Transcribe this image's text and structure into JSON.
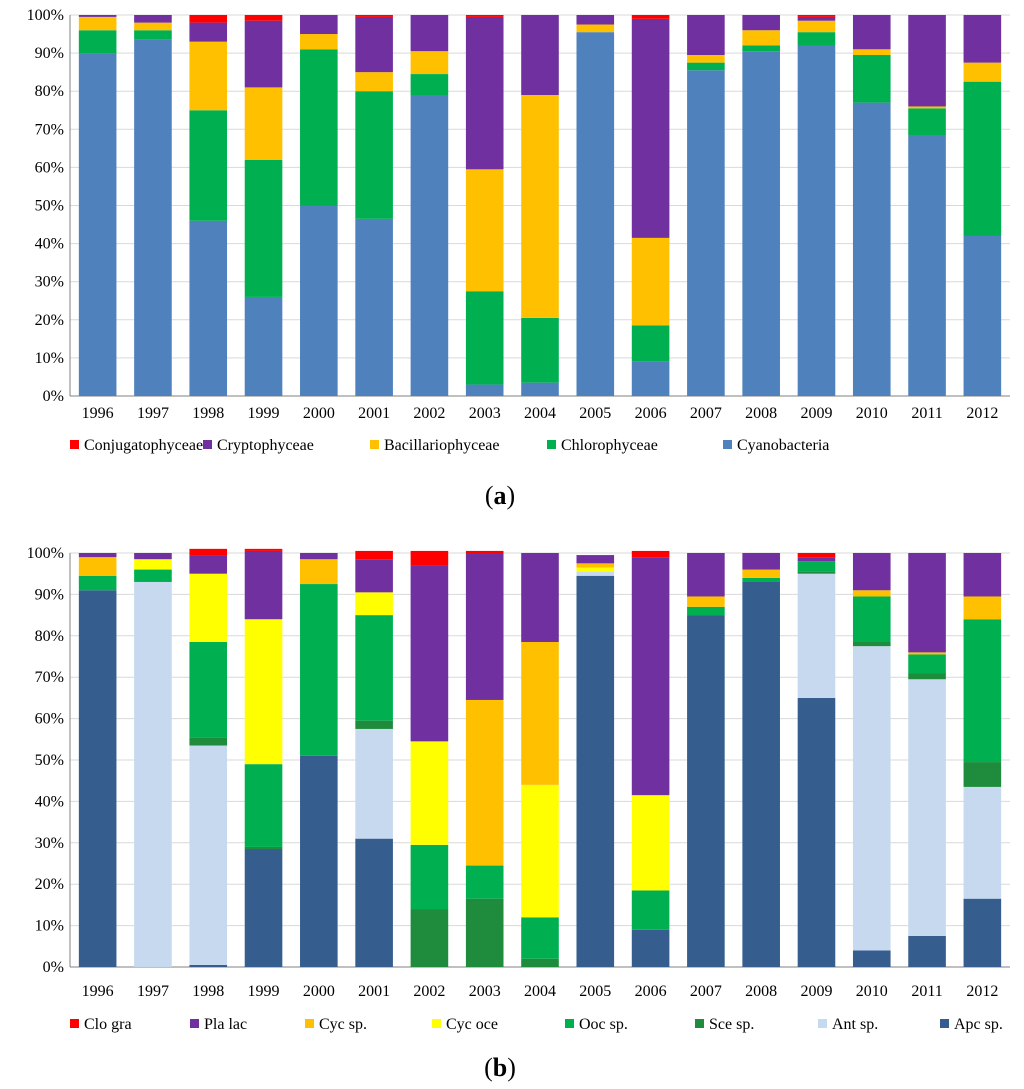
{
  "chart_data": [
    {
      "type": "bar",
      "stacked": true,
      "panel_label": "a",
      "categories": [
        "1996",
        "1997",
        "1998",
        "1999",
        "2000",
        "2001",
        "2002",
        "2003",
        "2004",
        "2005",
        "2006",
        "2007",
        "2008",
        "2009",
        "2010",
        "2011",
        "2012"
      ],
      "y_ticks": [
        "0%",
        "10%",
        "20%",
        "30%",
        "40%",
        "50%",
        "60%",
        "70%",
        "80%",
        "90%",
        "100%"
      ],
      "ylim": [
        0,
        100
      ],
      "legend_position": "bottom",
      "series": [
        {
          "name": "Cyanobacteria",
          "color": "#4F81BD",
          "values": [
            90,
            93.5,
            46,
            26,
            50,
            46.5,
            79,
            3,
            3.5,
            95.5,
            9,
            85.5,
            90.5,
            92,
            77,
            68.5,
            42
          ]
        },
        {
          "name": "Chlorophyceae",
          "color": "#00B050",
          "values": [
            6,
            2.5,
            29,
            36,
            41,
            33.5,
            5.5,
            24.5,
            17,
            0,
            9.5,
            2,
            1.5,
            3.5,
            12.5,
            7,
            40.5
          ]
        },
        {
          "name": "Bacillariophyceae",
          "color": "#FFC000",
          "values": [
            3.5,
            2,
            18,
            19,
            4,
            5,
            6,
            32,
            58.5,
            2,
            23,
            2,
            4,
            3,
            1.5,
            0.5,
            5
          ]
        },
        {
          "name": "Cryptophyceae",
          "color": "#7030A0",
          "values": [
            0.5,
            2,
            5,
            17.5,
            5,
            14.5,
            9.5,
            40,
            21,
            2.5,
            57.5,
            10.5,
            4,
            1,
            9,
            24,
            12.5
          ]
        },
        {
          "name": "Conjugatophyceae",
          "color": "#FF0000",
          "values": [
            0,
            0,
            2,
            1.5,
            0,
            0.5,
            0,
            0.5,
            0,
            0,
            1,
            0,
            0,
            0.5,
            0,
            0,
            0
          ]
        }
      ],
      "legend_order": [
        "Conjugatophyceae",
        "Cryptophyceae",
        "Bacillariophyceae",
        "Chlorophyceae",
        "Cyanobacteria"
      ]
    },
    {
      "type": "bar",
      "stacked": true,
      "panel_label": "b",
      "categories": [
        "1996",
        "1997",
        "1998",
        "1999",
        "2000",
        "2001",
        "2002",
        "2003",
        "2004",
        "2005",
        "2006",
        "2007",
        "2008",
        "2009",
        "2010",
        "2011",
        "2012"
      ],
      "y_ticks": [
        "0%",
        "10%",
        "20%",
        "30%",
        "40%",
        "50%",
        "60%",
        "70%",
        "80%",
        "90%",
        "100%"
      ],
      "ylim": [
        0,
        100
      ],
      "legend_position": "bottom",
      "series": [
        {
          "name": "Apc sp.",
          "color": "#355E8F",
          "values": [
            91,
            0,
            0.5,
            28.5,
            51,
            31,
            0,
            0,
            0,
            94.5,
            9,
            85,
            93,
            65,
            4,
            7.5,
            16.5
          ]
        },
        {
          "name": "Ant sp.",
          "color": "#C6D9EF",
          "values": [
            0,
            93,
            53,
            0,
            0,
            26.5,
            0,
            0,
            0,
            1,
            0,
            0,
            0,
            30,
            73.5,
            62,
            27
          ]
        },
        {
          "name": "Sce sp.",
          "color": "#1E8C3C",
          "values": [
            0,
            0,
            2,
            0.5,
            0,
            2,
            14,
            16.5,
            2,
            0,
            0,
            0,
            0,
            0.5,
            1,
            1.5,
            6
          ]
        },
        {
          "name": "Ooc sp.",
          "color": "#00B050",
          "values": [
            3.5,
            3,
            23,
            20,
            41.5,
            25.5,
            15.5,
            8,
            10,
            0,
            9.5,
            2,
            1,
            2.5,
            11,
            4.5,
            34.5
          ]
        },
        {
          "name": "Cyc oce",
          "color": "#FFFF00",
          "values": [
            0,
            2.5,
            16.5,
            35,
            0,
            5.5,
            25,
            0,
            32,
            1,
            23,
            0,
            0,
            0,
            0,
            0,
            0
          ]
        },
        {
          "name": "Cyc sp.",
          "color": "#FFC000",
          "values": [
            4.5,
            0,
            0,
            0,
            6,
            0,
            0,
            40,
            34.5,
            1,
            0,
            2.5,
            2,
            0,
            1.5,
            0.5,
            5.5
          ]
        },
        {
          "name": "Pla lac",
          "color": "#7030A0",
          "values": [
            1,
            1.5,
            4.5,
            16.5,
            1.5,
            8,
            42.5,
            35.5,
            21.5,
            2,
            57.5,
            10.5,
            4,
            1,
            9,
            24,
            10.5
          ]
        },
        {
          "name": "Clo gra",
          "color": "#FF0000",
          "values": [
            0,
            0,
            1.5,
            0.5,
            0,
            2,
            3.5,
            0.5,
            0,
            0,
            1.5,
            0,
            0,
            1,
            0,
            0,
            0
          ]
        }
      ],
      "legend_order": [
        "Clo gra",
        "Pla lac",
        "Cyc sp.",
        "Cyc oce",
        "Ooc sp.",
        "Sce sp.",
        "Ant sp.",
        "Apc sp."
      ]
    }
  ]
}
